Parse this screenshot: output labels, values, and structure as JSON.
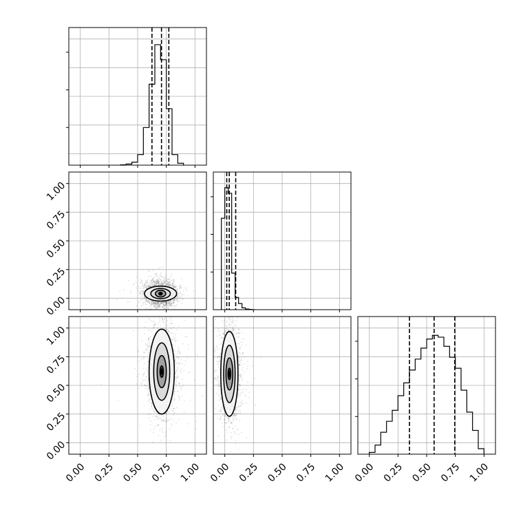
{
  "chart_data": {
    "type": "corner",
    "parameters": [
      "",
      "",
      ""
    ],
    "axis_range": [
      -0.1,
      1.1
    ],
    "ticks": [
      0.0,
      0.25,
      0.5,
      0.75,
      1.0
    ],
    "tick_labels": [
      "0.00",
      "0.25",
      "0.50",
      "0.75",
      "1.00"
    ],
    "grid": true,
    "colors": {
      "line": "#000000",
      "grid": "#b0b0b0",
      "scatter": "#000000"
    },
    "histograms": [
      {
        "parameter_index": 0,
        "bin_edges": [
          0.35,
          0.4,
          0.45,
          0.5,
          0.55,
          0.6,
          0.65,
          0.7,
          0.75,
          0.8,
          0.85,
          0.9
        ],
        "counts": [
          1,
          3,
          8,
          28,
          100,
          215,
          320,
          280,
          150,
          28,
          5
        ],
        "quantiles": [
          0.625,
          0.708,
          0.772
        ],
        "ymax": 340
      },
      {
        "parameter_index": 1,
        "bin_edges": [
          -0.03,
          0.0,
          0.03,
          0.06,
          0.09,
          0.12,
          0.15,
          0.18,
          0.21,
          0.24,
          0.27
        ],
        "counts": [
          300,
          400,
          382,
          120,
          40,
          20,
          6,
          2,
          1,
          0
        ],
        "quantiles": [
          0.017,
          0.039,
          0.095
        ],
        "ymax": 420
      },
      {
        "parameter_index": 2,
        "bin_edges": [
          0.0,
          0.05,
          0.1,
          0.15,
          0.2,
          0.25,
          0.3,
          0.35,
          0.4,
          0.45,
          0.5,
          0.55,
          0.6,
          0.65,
          0.7,
          0.75,
          0.8,
          0.85,
          0.9,
          0.95,
          1.0
        ],
        "counts": [
          1,
          5,
          12,
          18,
          24,
          32,
          39,
          46,
          52,
          58,
          63,
          65,
          64,
          59,
          53,
          47,
          35,
          23,
          13,
          3
        ],
        "quantiles": [
          0.35,
          0.565,
          0.745
        ],
        "ymax": 70
      }
    ],
    "pairs": [
      {
        "x_index": 0,
        "y_index": 1,
        "center": [
          0.7,
          0.04
        ],
        "contours": [
          {
            "rx": 0.015,
            "ry": 0.012
          },
          {
            "rx": 0.045,
            "ry": 0.03
          },
          {
            "rx": 0.085,
            "ry": 0.045
          },
          {
            "rx": 0.14,
            "ry": 0.065
          }
        ],
        "scatter_spread": [
          0.07,
          0.06
        ]
      },
      {
        "x_index": 0,
        "y_index": 2,
        "center": [
          0.71,
          0.62
        ],
        "contours": [
          {
            "rx": 0.015,
            "ry": 0.05
          },
          {
            "rx": 0.04,
            "ry": 0.14
          },
          {
            "rx": 0.07,
            "ry": 0.25
          },
          {
            "rx": 0.11,
            "ry": 0.37
          }
        ],
        "scatter_spread": [
          0.065,
          0.2
        ]
      },
      {
        "x_index": 1,
        "y_index": 2,
        "center": [
          0.04,
          0.6
        ],
        "contours": [
          {
            "rx": 0.012,
            "ry": 0.05
          },
          {
            "rx": 0.03,
            "ry": 0.14
          },
          {
            "rx": 0.05,
            "ry": 0.25
          },
          {
            "rx": 0.075,
            "ry": 0.37
          }
        ],
        "scatter_spread": [
          0.045,
          0.2
        ]
      }
    ]
  }
}
